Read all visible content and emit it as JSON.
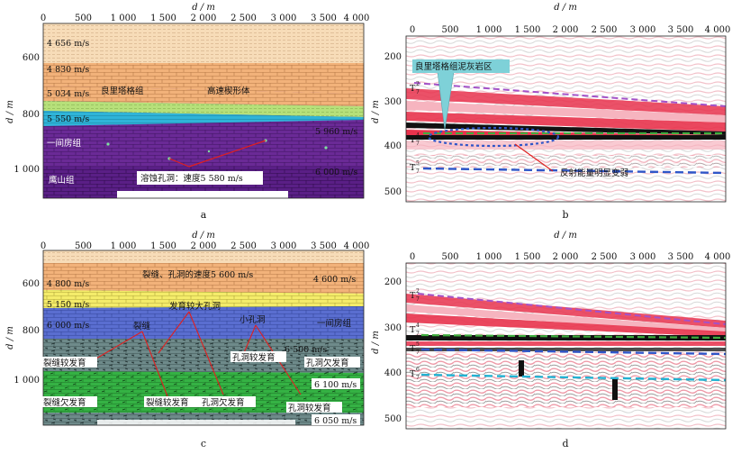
{
  "axes": {
    "x_unit": "d / m",
    "y_unit": "d / m",
    "x_ticks": [
      "0",
      "500",
      "1 000",
      "1 500",
      "2 000",
      "2 500",
      "3 000",
      "3 500",
      "4 000"
    ],
    "a_y_ticks": [
      "600",
      "800",
      "1 000"
    ],
    "b_y_ticks": [
      "200",
      "300",
      "400",
      "500"
    ],
    "c_y_ticks": [
      "600",
      "800",
      "1 000"
    ],
    "d_y_ticks": [
      "200",
      "300",
      "400",
      "500"
    ]
  },
  "captions": {
    "a": "a",
    "b": "b",
    "c": "c",
    "d": "d"
  },
  "panel_a": {
    "v1": "4 656 m/s",
    "v2": "4 830 m/s",
    "v3": "5 034 m/s",
    "v4": "5 550 m/s",
    "v_right1": "5 960 m/s",
    "v_right2": "6 000 m/s",
    "f_lianglitage": "良里塔格组",
    "wedge": "高速楔形体",
    "f_yijianfang": "一间房组",
    "f_yingshan": "鹰山组",
    "karst": "溶蚀孔洞：速度5 580 m/s"
  },
  "panel_b": {
    "callout": "良里塔格组泥灰岩区",
    "h1_base": "T",
    "h1_sub": "7",
    "h1_sup": "2",
    "h2_base": "T",
    "h2_sub": "7",
    "h2_sup": "4",
    "h3_base": "T",
    "h3_sub": "7",
    "h3_sup": "5",
    "note": "反射能量明显变弱"
  },
  "panel_c": {
    "v_top": "4 800 m/s",
    "v_top_note": "裂缝、孔洞的速度5 600 m/s",
    "v_right_top": "4 600 m/s",
    "v2": "5 150 m/s",
    "v3": "6 000 m/s",
    "big_caves": "发育较大孔洞",
    "fracture": "裂缝",
    "small_caves": "小孔洞",
    "f_yijianfang": "一间房组",
    "v_mid_right": "6 500 m/s",
    "frac_dev": "裂缝较发育",
    "cave_dev": "孔洞较发育",
    "cave_undev": "孔洞欠发育",
    "v_6100": "6 100 m/s",
    "frac_undev": "裂缝欠发育",
    "frac_dev2": "裂缝较发育",
    "cave_undev2": "孔洞欠发育",
    "cave_dev2": "孔洞较发育",
    "v_6050": "6 050 m/s"
  },
  "panel_d": {
    "h1_base": "T",
    "h1_sub": "7",
    "h1_sup": "2",
    "h2_base": "T",
    "h2_sub": "7",
    "h2_sup": "4",
    "h3_base": "T",
    "h3_sub": "7",
    "h3_sup": "5",
    "h4_base": "T",
    "h4_sub": "7",
    "h4_sup": "6"
  },
  "colors": {
    "top_layer": "#f7dcb8",
    "brick": "#f2b27a",
    "green_light": "#b6e07a",
    "yellow": "#f4ec6a",
    "cyan": "#2fb4d8",
    "purple": "#6a2a96",
    "blue": "#5a6ed0",
    "gray": "#6e8a8a",
    "green": "#35b244",
    "seis_red": "#e8334d",
    "seis_pink": "#f6b4bf",
    "seis_black": "#111111",
    "dash_purple": "#a352c8",
    "dash_green": "#3fae3f",
    "dash_blue": "#2f56c8",
    "dash_cyan": "#22b2d2",
    "callout_fill": "#7ed1d8",
    "pointer_red": "#e01f1f"
  }
}
